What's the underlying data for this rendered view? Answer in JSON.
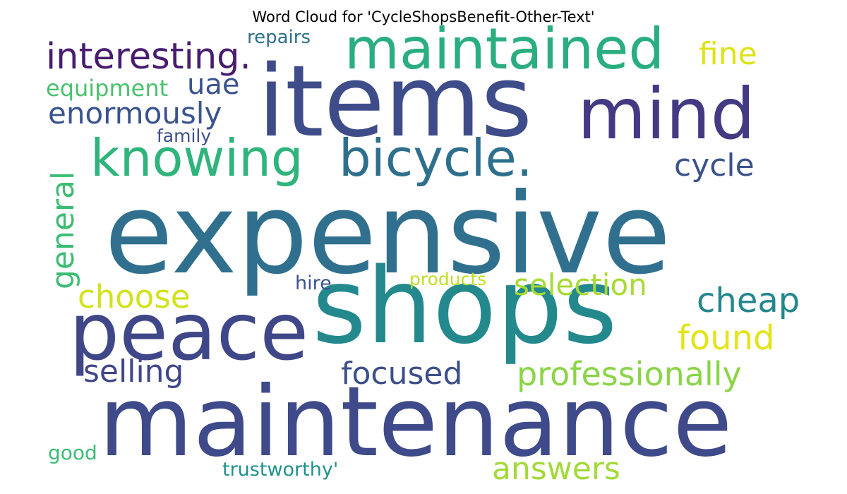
{
  "title": "Word Cloud for 'CycleShopsBenefit-Other-Text'",
  "words": [
    {
      "text": "expensive",
      "color": "#30708e"
    },
    {
      "text": "maintenance",
      "color": "#3e4a89"
    },
    {
      "text": "shops",
      "color": "#24898d"
    },
    {
      "text": "items",
      "color": "#3e4c8a"
    },
    {
      "text": "peace",
      "color": "#3f4788"
    },
    {
      "text": "mind",
      "color": "#433a83"
    },
    {
      "text": "maintained",
      "color": "#2aae80"
    },
    {
      "text": "knowing",
      "color": "#2fb47c"
    },
    {
      "text": "bicycle.",
      "color": "#2e6f8e"
    },
    {
      "text": "interesting.",
      "color": "#481c6e"
    },
    {
      "text": "professionally",
      "color": "#8ad547"
    },
    {
      "text": "selection",
      "color": "#a8db34"
    },
    {
      "text": "focused",
      "color": "#3c4f8a"
    },
    {
      "text": "enormously",
      "color": "#3a548c"
    },
    {
      "text": "answers",
      "color": "#a2da37"
    },
    {
      "text": "cheap",
      "color": "#24868e"
    },
    {
      "text": "choose",
      "color": "#d2e21b"
    },
    {
      "text": "found",
      "color": "#e5e419"
    },
    {
      "text": "selling",
      "color": "#404688"
    },
    {
      "text": "cycle",
      "color": "#3b528b"
    },
    {
      "text": "fine",
      "color": "#dfe318"
    },
    {
      "text": "general",
      "color": "#3dbc74"
    },
    {
      "text": "equipment",
      "color": "#4ac16d"
    },
    {
      "text": "uae",
      "color": "#3a548c"
    },
    {
      "text": "repairs",
      "color": "#2e6f8e"
    },
    {
      "text": "trustworthy'",
      "color": "#20928c"
    },
    {
      "text": "good",
      "color": "#3dbc74"
    },
    {
      "text": "hire",
      "color": "#3b528b"
    },
    {
      "text": "family",
      "color": "#3e4c8a"
    },
    {
      "text": "products",
      "color": "#c0df25"
    }
  ]
}
